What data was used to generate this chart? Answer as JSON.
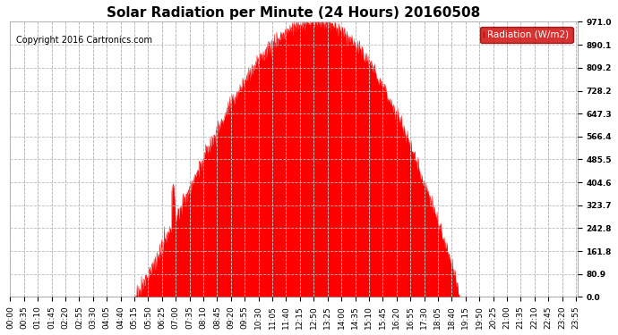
{
  "title": "Solar Radiation per Minute (24 Hours) 20160508",
  "copyright_text": "Copyright 2016 Cartronics.com",
  "legend_label": "Radiation (W/m2)",
  "yticks": [
    0.0,
    80.9,
    161.8,
    242.8,
    323.7,
    404.6,
    485.5,
    566.4,
    647.3,
    728.2,
    809.2,
    890.1,
    971.0
  ],
  "ymax": 971.0,
  "fill_color": "#ff0000",
  "background_color": "#ffffff",
  "grid_color": "#aaaaaa",
  "title_fontsize": 11,
  "copyright_fontsize": 7,
  "axis_fontsize": 6.5,
  "legend_bg": "#cc0000",
  "legend_text_color": "#ffffff",
  "sunrise_min": 315,
  "sunset_min": 1140,
  "peak_min": 775,
  "peak_val": 971.0,
  "tick_interval": 35,
  "n_minutes": 1440
}
